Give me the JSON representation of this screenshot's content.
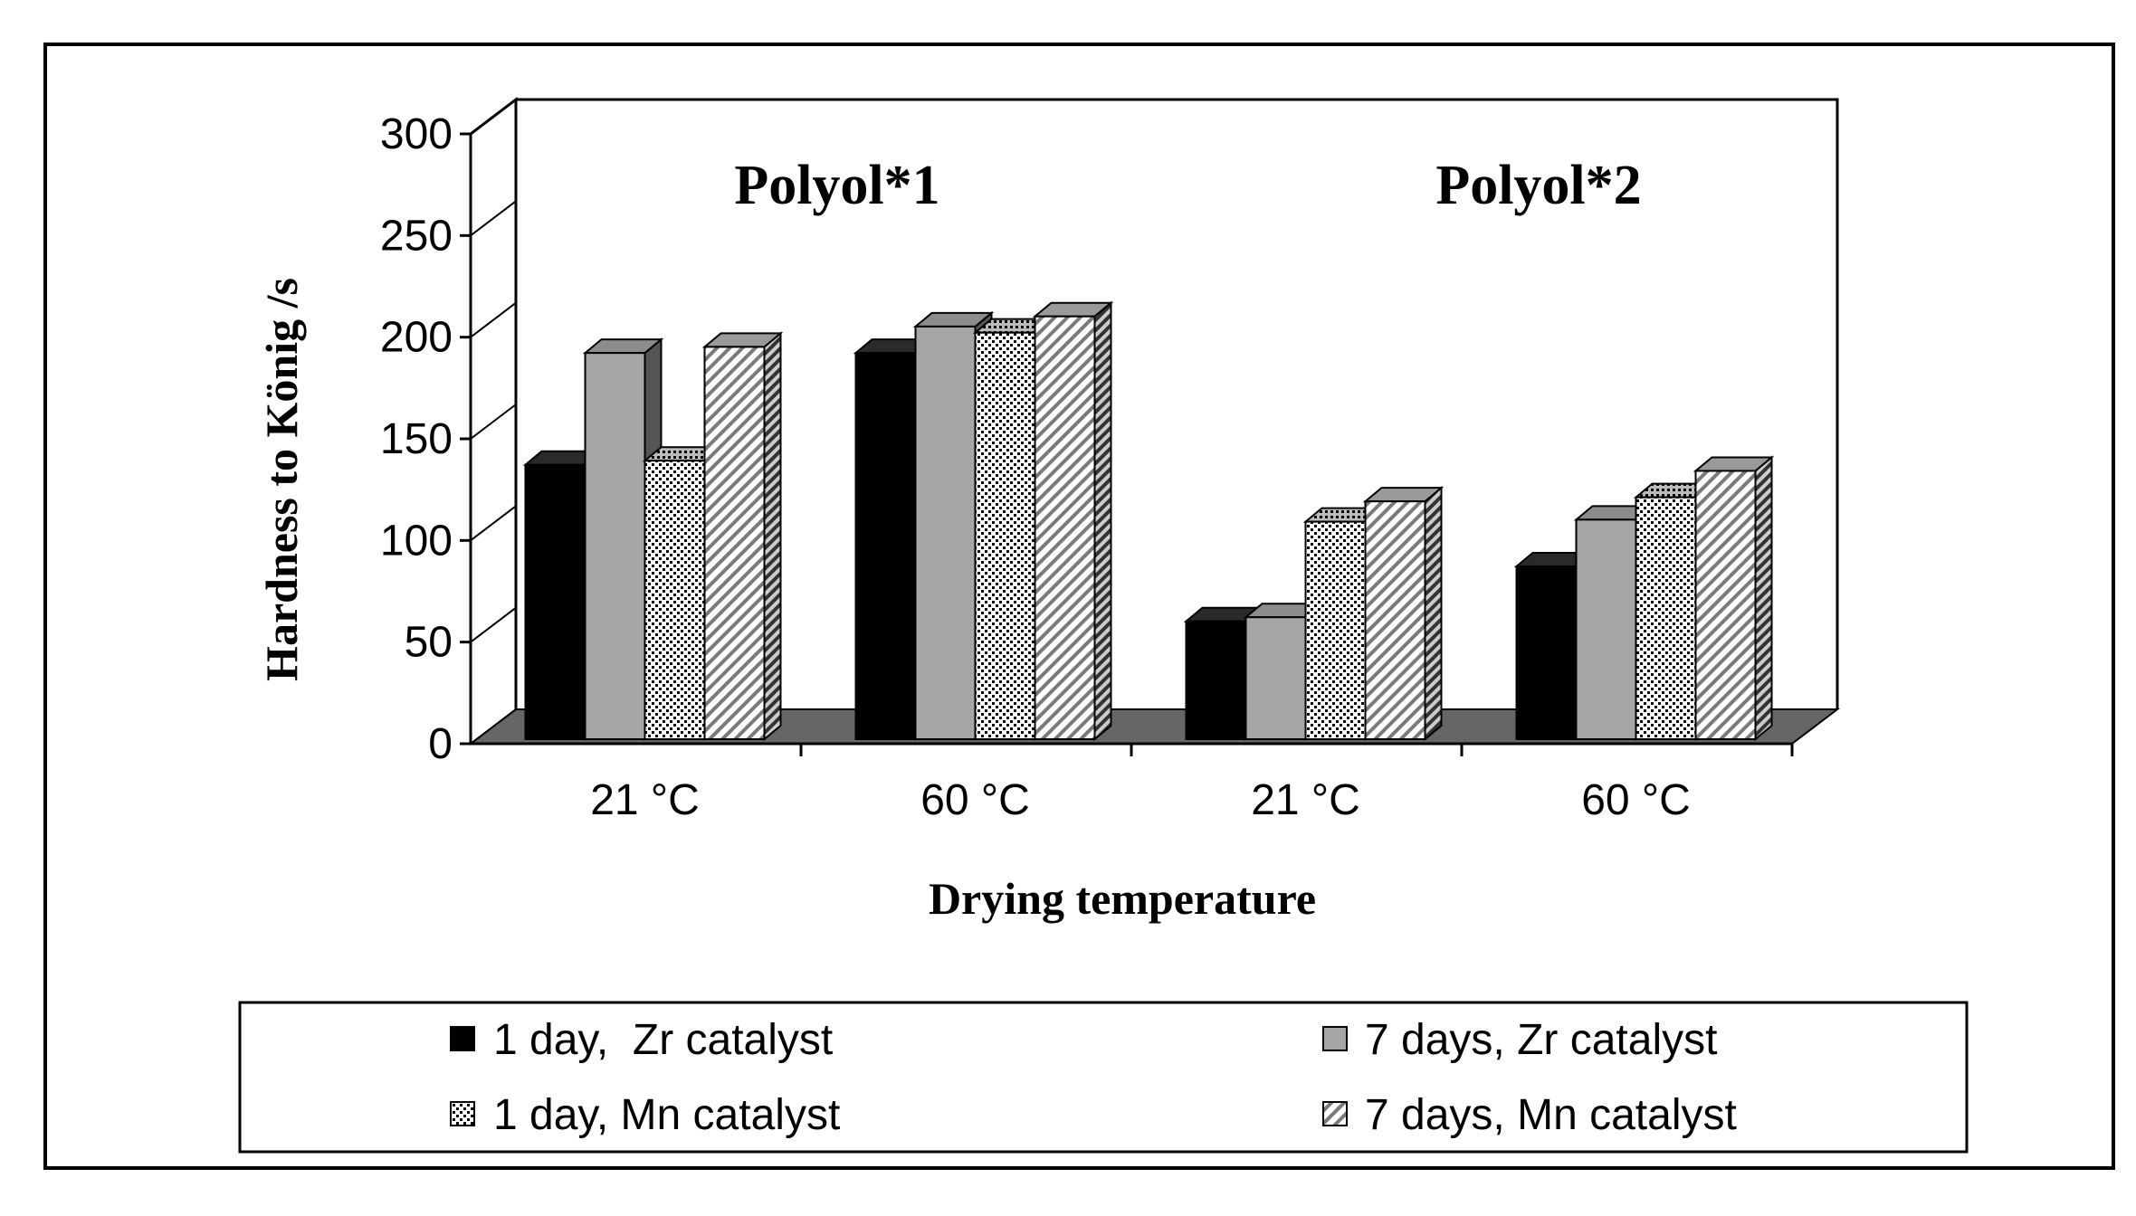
{
  "chart_data": {
    "type": "bar",
    "style": "3d-clustered-column",
    "ylabel": "Hardness to König /s",
    "xlabel": "Drying temperature",
    "ylim": [
      0,
      300
    ],
    "yticks": [
      0,
      50,
      100,
      150,
      200,
      250,
      300
    ],
    "group_titles": [
      "Polyol*1",
      "Polyol*2"
    ],
    "categories": [
      "21 °C",
      "60 °C",
      "21 °C",
      "60 °C"
    ],
    "series": [
      {
        "name": "1 day,  Zr catalyst",
        "pattern": "solid-black",
        "values": [
          135,
          190,
          58,
          85
        ]
      },
      {
        "name": "7 days, Zr catalyst",
        "pattern": "solid-gray",
        "values": [
          190,
          203,
          60,
          108
        ]
      },
      {
        "name": "1 day, Mn catalyst",
        "pattern": "dotted",
        "values": [
          137,
          200,
          107,
          119
        ]
      },
      {
        "name": "7 days, Mn catalyst",
        "pattern": "hatched",
        "values": [
          193,
          208,
          117,
          132
        ]
      }
    ],
    "grid": false,
    "legend_position": "bottom",
    "colors": {
      "floor": "#666666",
      "black_bar": "#000000",
      "gray_bar": "#a6a6a6",
      "gray_bar_side": "#555555",
      "gray_bar_top": "#8c8c8c"
    }
  }
}
